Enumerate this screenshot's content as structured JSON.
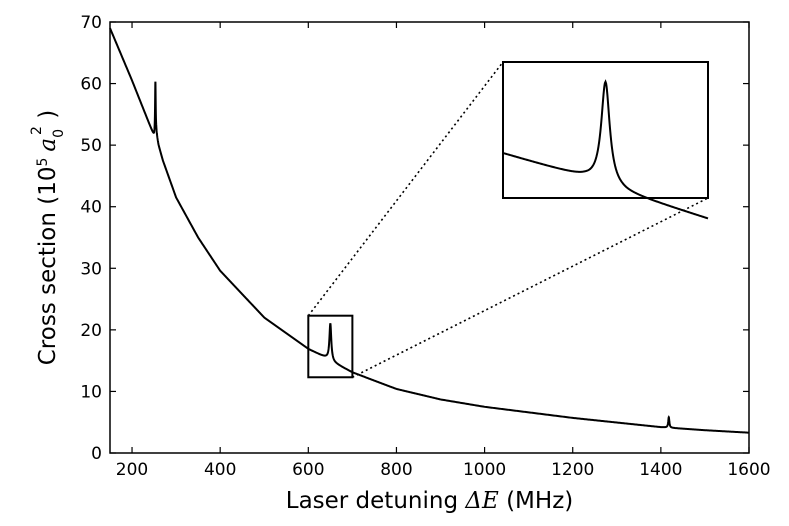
{
  "chart_data": {
    "type": "line",
    "xlabel": {
      "prefix": "Laser detuning ",
      "symbol": "ΔE",
      "suffix": " (MHz)"
    },
    "ylabel": {
      "prefix": "Cross section (10",
      "exponent": "5",
      "unit": "a",
      "unit_sub": "0",
      "unit_sup": "2",
      "suffix": " )"
    },
    "xlim": [
      150,
      1600
    ],
    "ylim": [
      0,
      70
    ],
    "xticks": [
      200,
      400,
      600,
      800,
      1000,
      1200,
      1400,
      1600
    ],
    "yticks": [
      0,
      10,
      20,
      30,
      40,
      50,
      60,
      70
    ],
    "grid": false,
    "series": [
      {
        "background": {
          "x": [
            150,
            200,
            250,
            255,
            260,
            270,
            300,
            350,
            400,
            500,
            600,
            640,
            660,
            700,
            800,
            900,
            1000,
            1200,
            1400,
            1420,
            1500,
            1600
          ],
          "y": [
            69,
            60.5,
            51.5,
            52,
            50,
            47.5,
            41.5,
            35,
            29.6,
            22,
            16.9,
            15.5,
            14.6,
            13.1,
            10.4,
            8.7,
            7.5,
            5.7,
            4.2,
            4.1,
            3.7,
            3.3
          ]
        },
        "resonances": [
          {
            "center": 253,
            "height": 8.5,
            "width": 0.8
          },
          {
            "center": 650,
            "height": 6.0,
            "width": 2.5
          },
          {
            "center": 1418,
            "height": 1.7,
            "width": 1.5
          }
        ]
      }
    ],
    "zoom_box": {
      "x_range": [
        600,
        700
      ],
      "y_range": [
        12.3,
        22.3
      ]
    },
    "inset": {
      "x_range": [
        600,
        700
      ],
      "y_range": [
        14.3,
        22.2
      ],
      "shows": "resonance near 650 MHz"
    }
  }
}
